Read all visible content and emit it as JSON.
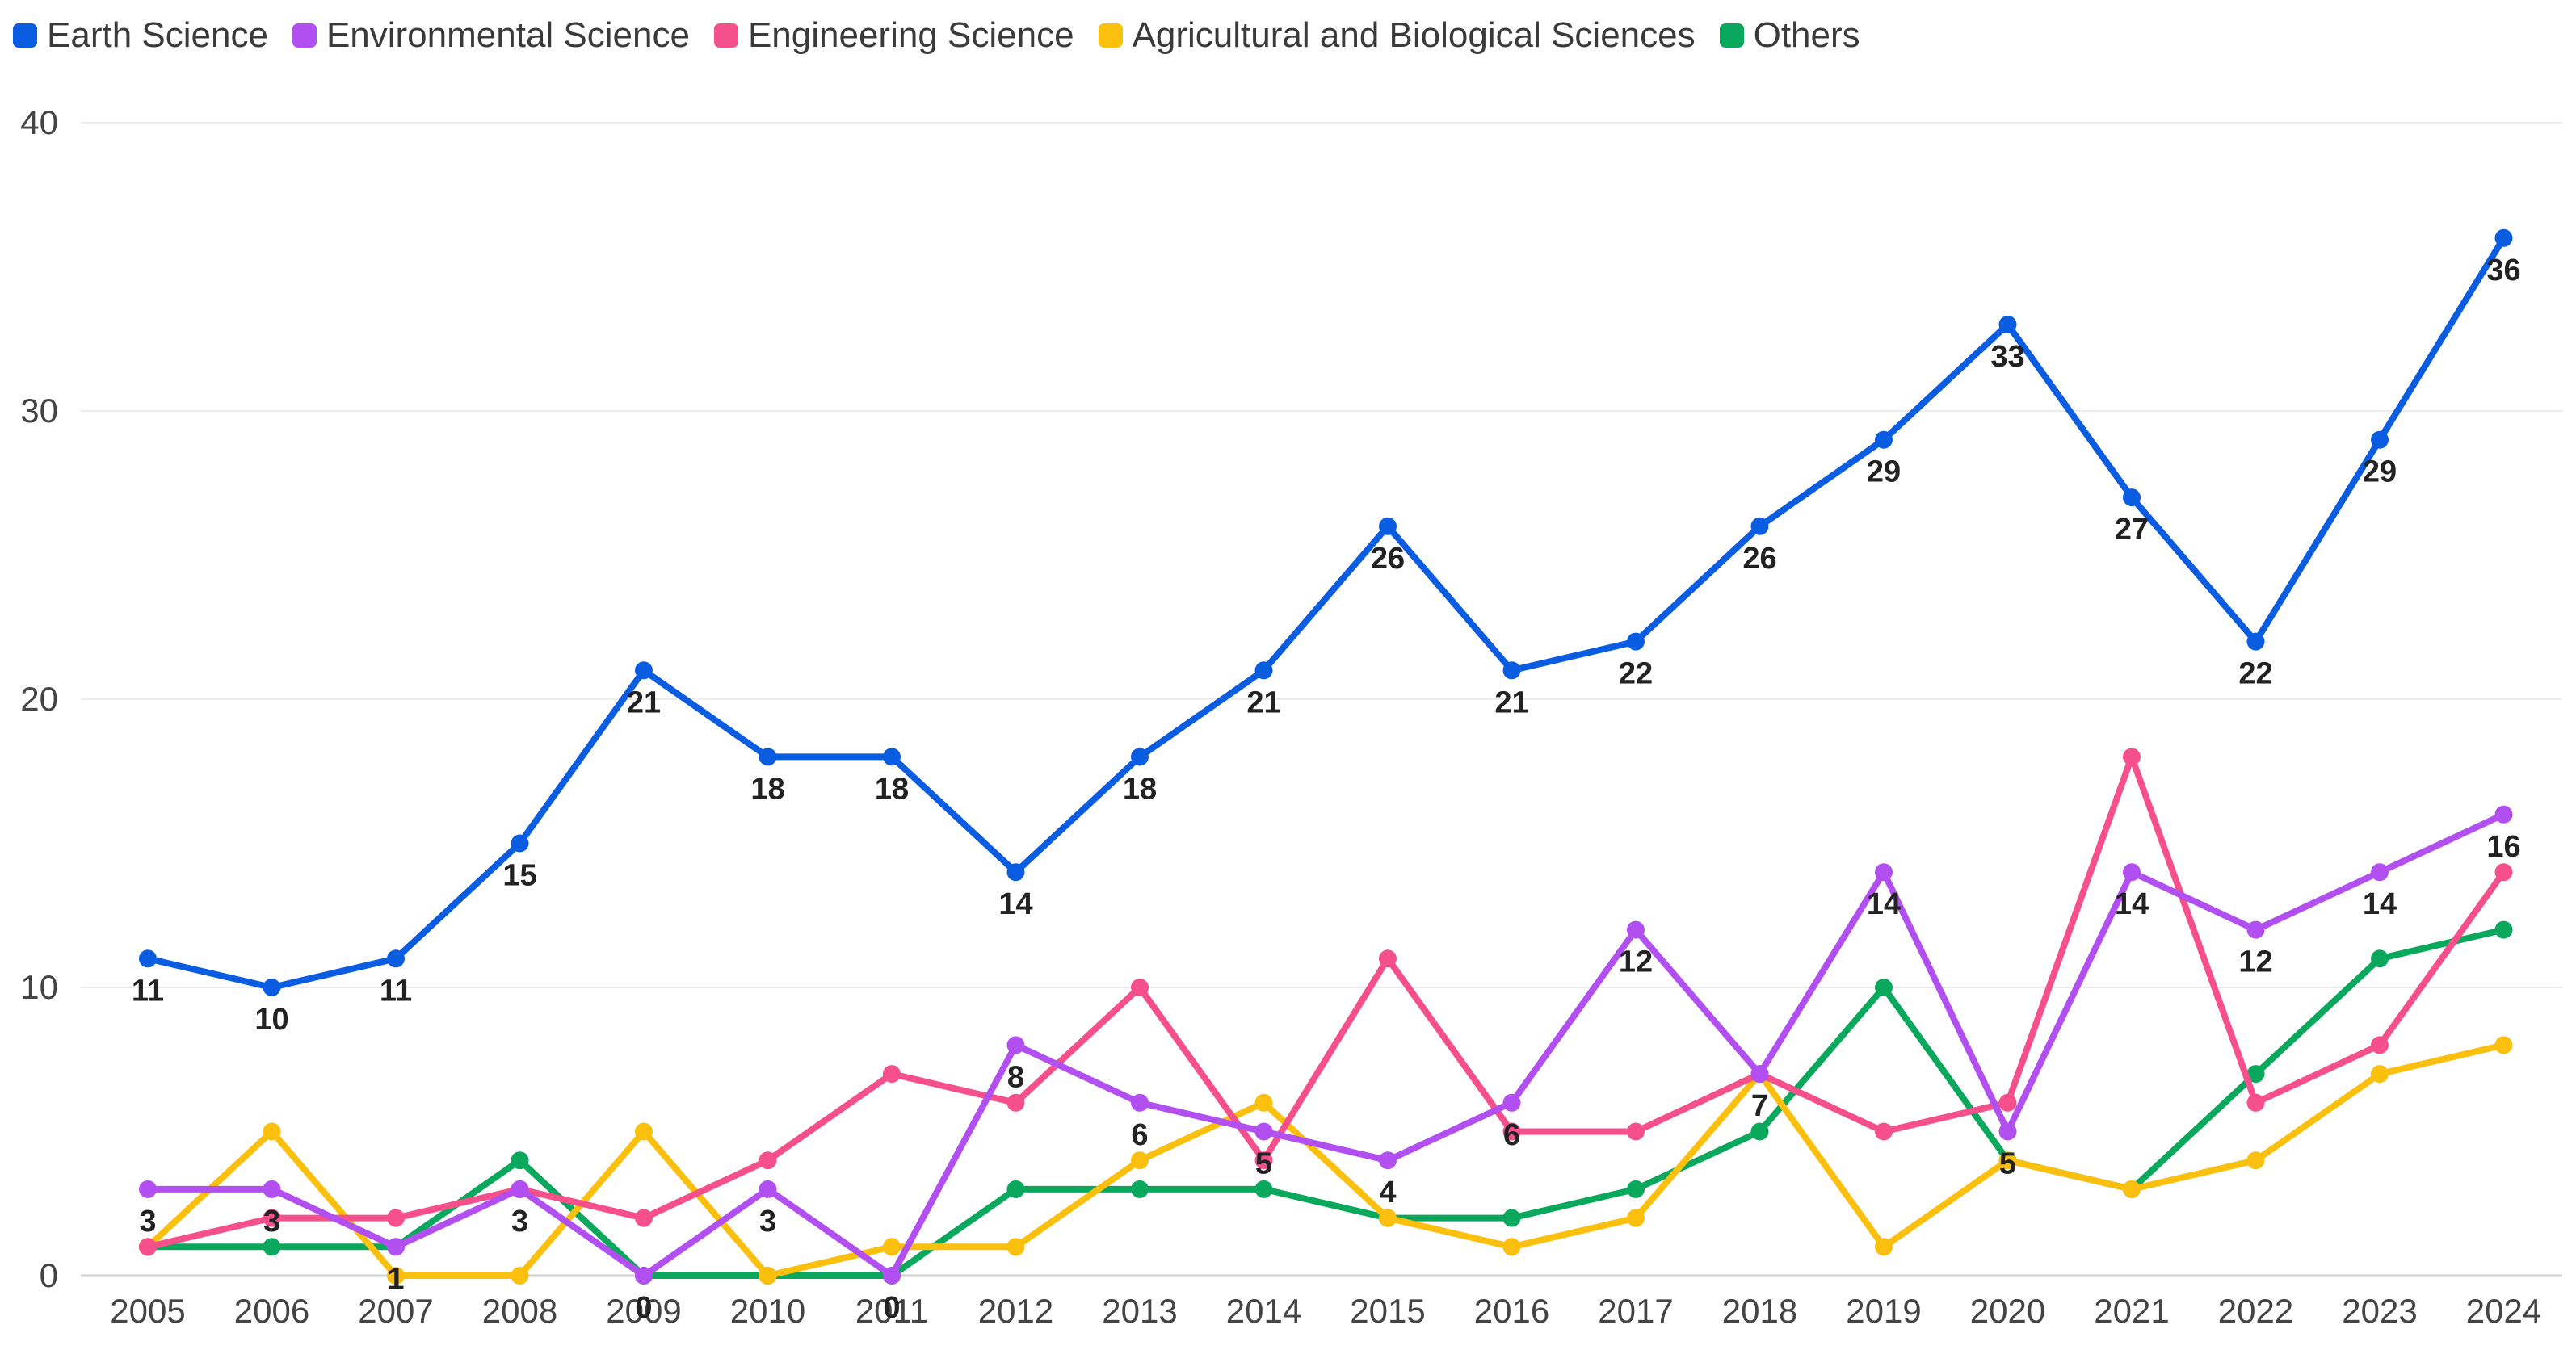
{
  "chart_data": {
    "type": "line",
    "title": "",
    "xlabel": "",
    "ylabel": "",
    "ylim": [
      0,
      40
    ],
    "yticks": [
      0,
      10,
      20,
      30,
      40
    ],
    "grid": true,
    "legend_position": "top-left",
    "categories": [
      "2005",
      "2006",
      "2007",
      "2008",
      "2009",
      "2010",
      "2011",
      "2012",
      "2013",
      "2014",
      "2015",
      "2016",
      "2017",
      "2018",
      "2019",
      "2020",
      "2021",
      "2022",
      "2023",
      "2024"
    ],
    "series": [
      {
        "name": "Earth Science",
        "color": "#0a5ce0",
        "label_values": true,
        "values": [
          11,
          10,
          11,
          15,
          21,
          18,
          18,
          14,
          18,
          21,
          26,
          21,
          22,
          26,
          29,
          33,
          27,
          22,
          29,
          36
        ]
      },
      {
        "name": "Environmental Science",
        "color": "#b24ff0",
        "label_values": true,
        "values": [
          3,
          3,
          1,
          3,
          0,
          3,
          0,
          8,
          6,
          5,
          4,
          6,
          12,
          7,
          14,
          5,
          14,
          12,
          14,
          16
        ]
      },
      {
        "name": "Engineering Science",
        "color": "#f5508c",
        "label_values": false,
        "values": [
          1,
          2,
          2,
          3,
          2,
          4,
          7,
          6,
          10,
          4,
          11,
          5,
          5,
          7,
          5,
          6,
          18,
          6,
          8,
          14
        ]
      },
      {
        "name": "Agricultural and Biological Sciences",
        "color": "#fbbf0e",
        "label_values": false,
        "values": [
          1,
          5,
          0,
          0,
          5,
          0,
          1,
          1,
          4,
          6,
          2,
          1,
          2,
          7,
          1,
          4,
          3,
          4,
          7,
          8
        ]
      },
      {
        "name": "Others",
        "color": "#0aa85c",
        "label_values": false,
        "values": [
          1,
          1,
          1,
          4,
          0,
          0,
          0,
          3,
          3,
          3,
          2,
          2,
          3,
          5,
          10,
          4,
          3,
          7,
          11,
          12
        ]
      }
    ]
  }
}
